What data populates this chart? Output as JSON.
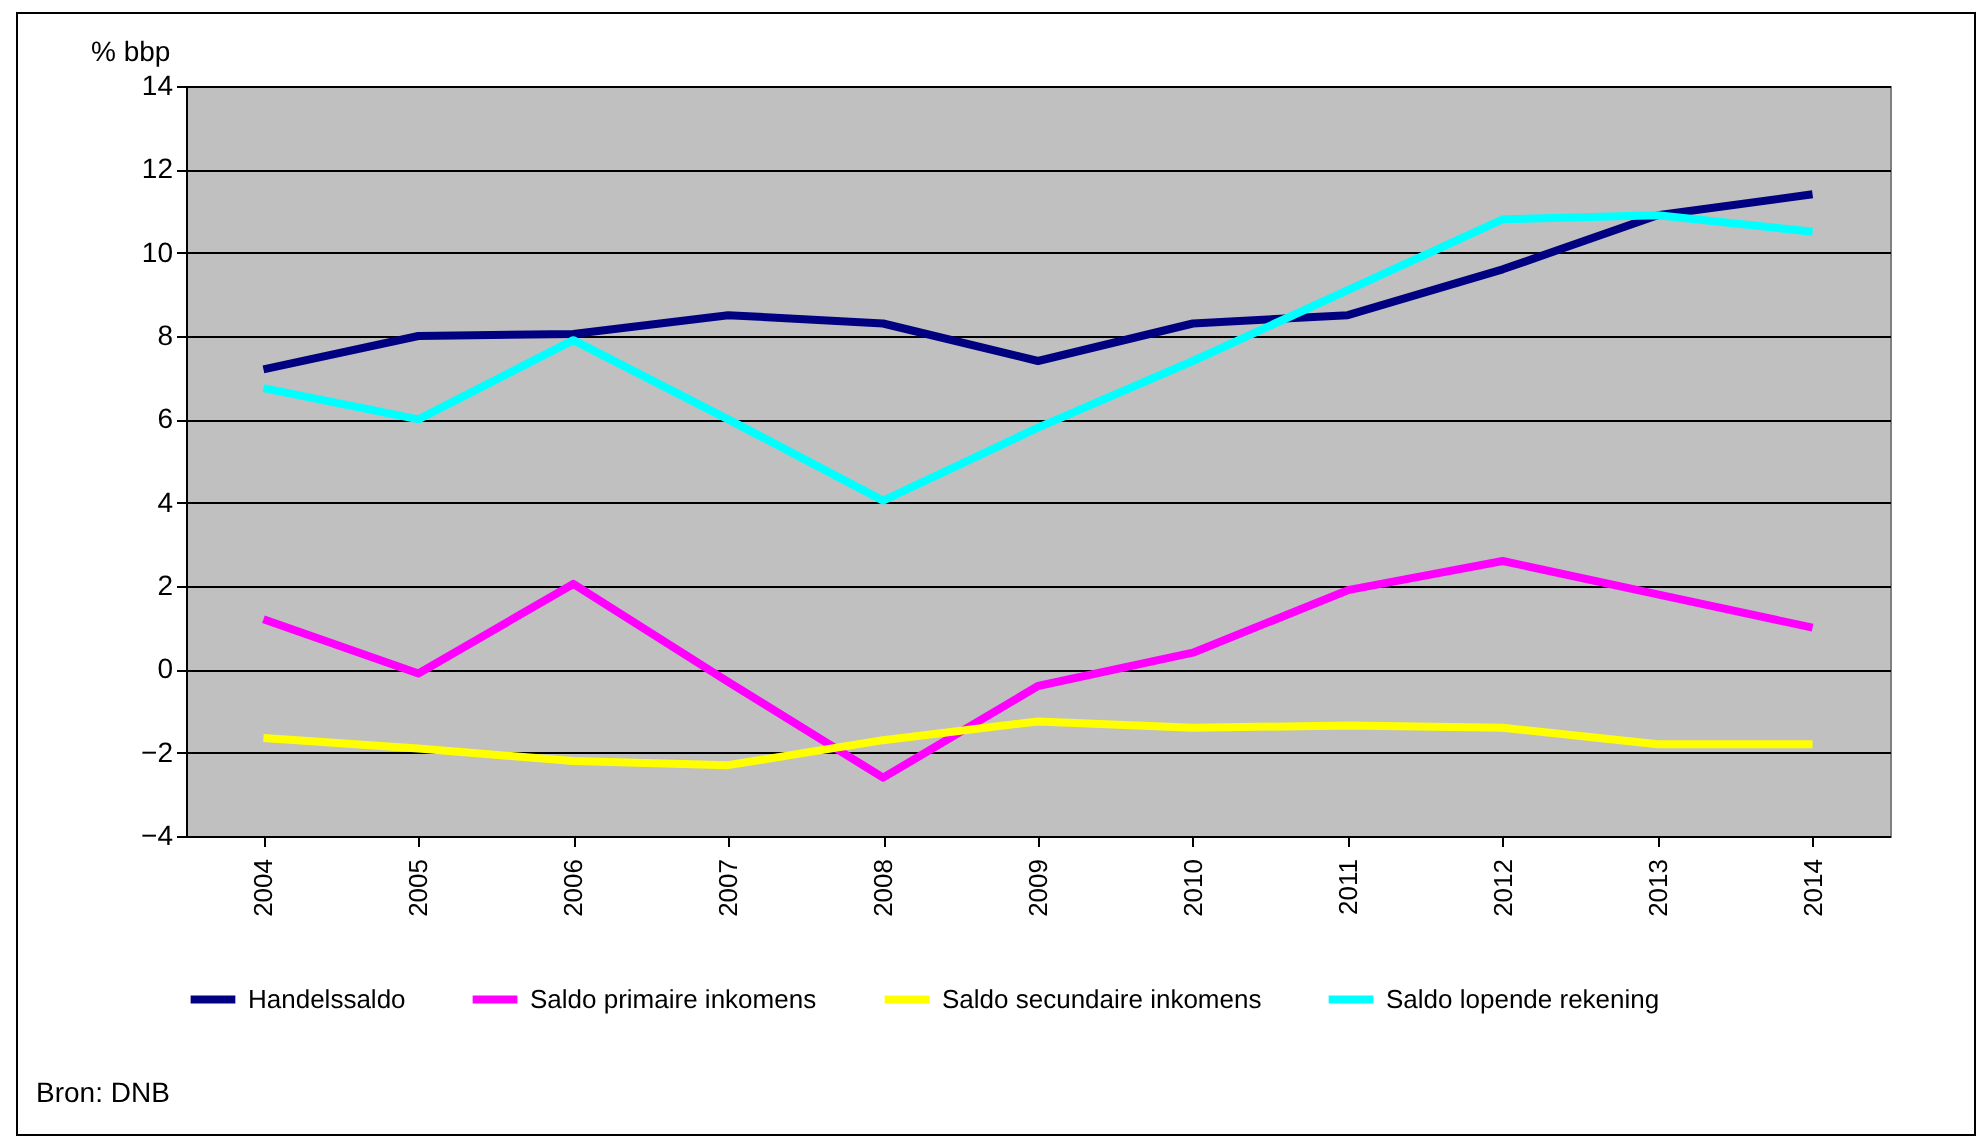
{
  "chart_data": {
    "type": "line",
    "ylabel": "% bbp",
    "categories": [
      "2004",
      "2005",
      "2006",
      "2007",
      "2008",
      "2009",
      "2010",
      "2011",
      "2012",
      "2013",
      "2014"
    ],
    "series": [
      {
        "name": "Handelssaldo",
        "color": "#000080",
        "values": [
          7.2,
          8.0,
          8.05,
          8.5,
          8.3,
          7.4,
          8.3,
          8.5,
          9.6,
          10.9,
          11.4
        ]
      },
      {
        "name": "Saldo primaire inkomens",
        "color": "#ff00ff",
        "values": [
          1.2,
          -0.1,
          2.05,
          -0.3,
          -2.6,
          -0.4,
          0.4,
          1.9,
          2.6,
          1.8,
          1.0
        ]
      },
      {
        "name": "Saldo secundaire inkomens",
        "color": "#ffff00",
        "values": [
          -1.65,
          -1.9,
          -2.2,
          -2.3,
          -1.7,
          -1.25,
          -1.4,
          -1.35,
          -1.4,
          -1.8,
          -1.8
        ]
      },
      {
        "name": "Saldo lopende rekening",
        "color": "#00ffff",
        "values": [
          6.75,
          6.0,
          7.9,
          6.0,
          4.05,
          5.8,
          7.4,
          9.1,
          10.8,
          10.9,
          10.5
        ]
      }
    ],
    "ylim": [
      -4,
      14
    ],
    "yticks": [
      -4,
      -2,
      0,
      2,
      4,
      6,
      8,
      10,
      12,
      14
    ],
    "grid": "y",
    "legend": "bottom",
    "line_style": "solid",
    "marker": "none",
    "annotations": [
      "Bron: DNB"
    ]
  }
}
